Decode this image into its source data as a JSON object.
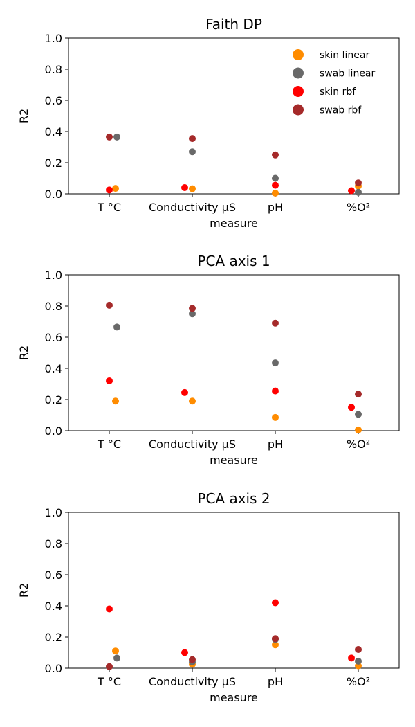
{
  "chart_data": [
    {
      "type": "scatter",
      "title": "Faith DP",
      "xlabel": "measure",
      "ylabel": "R2",
      "ylim": [
        0,
        1
      ],
      "yticks": [
        "0.0",
        "0.2",
        "0.4",
        "0.6",
        "0.8",
        "1.0"
      ],
      "categories": [
        "T °C",
        "Conductivity µS",
        "pH",
        "%O²"
      ],
      "legend": {
        "position": "top-right",
        "entries": [
          {
            "name": "skin linear",
            "color": "#ff8c00"
          },
          {
            "name": "swab linear",
            "color": "#696969"
          },
          {
            "name": "skin rbf",
            "color": "#ff0000"
          },
          {
            "name": "swab rbf",
            "color": "#a52a2a"
          }
        ]
      },
      "series": [
        {
          "name": "skin linear",
          "color": "#ff8c00",
          "values": [
            0.035,
            0.033,
            0.005,
            0.05
          ]
        },
        {
          "name": "swab linear",
          "color": "#696969",
          "values": [
            0.365,
            0.27,
            0.1,
            0.01
          ]
        },
        {
          "name": "skin rbf",
          "color": "#ff0000",
          "values": [
            0.025,
            0.04,
            0.055,
            0.02
          ]
        },
        {
          "name": "swab rbf",
          "color": "#a52a2a",
          "values": [
            0.365,
            0.355,
            0.25,
            0.07
          ]
        }
      ]
    },
    {
      "type": "scatter",
      "title": "PCA axis 1",
      "xlabel": "measure",
      "ylabel": "R2",
      "ylim": [
        0,
        1
      ],
      "yticks": [
        "0.0",
        "0.2",
        "0.4",
        "0.6",
        "0.8",
        "1.0"
      ],
      "categories": [
        "T °C",
        "Conductivity µS",
        "pH",
        "%O²"
      ],
      "series": [
        {
          "name": "skin linear",
          "color": "#ff8c00",
          "values": [
            0.19,
            0.19,
            0.085,
            0.005
          ]
        },
        {
          "name": "swab linear",
          "color": "#696969",
          "values": [
            0.665,
            0.75,
            0.435,
            0.105
          ]
        },
        {
          "name": "skin rbf",
          "color": "#ff0000",
          "values": [
            0.32,
            0.245,
            0.255,
            0.15
          ]
        },
        {
          "name": "swab rbf",
          "color": "#a52a2a",
          "values": [
            0.805,
            0.785,
            0.69,
            0.235
          ]
        }
      ]
    },
    {
      "type": "scatter",
      "title": "PCA axis 2",
      "xlabel": "measure",
      "ylabel": "R2",
      "ylim": [
        0,
        1
      ],
      "yticks": [
        "0.0",
        "0.2",
        "0.4",
        "0.6",
        "0.8",
        "1.0"
      ],
      "categories": [
        "T °C",
        "Conductivity µS",
        "pH",
        "%O²"
      ],
      "series": [
        {
          "name": "skin linear",
          "color": "#ff8c00",
          "values": [
            0.11,
            0.025,
            0.15,
            0.015
          ]
        },
        {
          "name": "swab linear",
          "color": "#696969",
          "values": [
            0.065,
            0.04,
            0.185,
            0.045
          ]
        },
        {
          "name": "skin rbf",
          "color": "#ff0000",
          "values": [
            0.38,
            0.1,
            0.42,
            0.065
          ]
        },
        {
          "name": "swab rbf",
          "color": "#a52a2a",
          "values": [
            0.01,
            0.055,
            0.19,
            0.12
          ]
        }
      ]
    }
  ]
}
